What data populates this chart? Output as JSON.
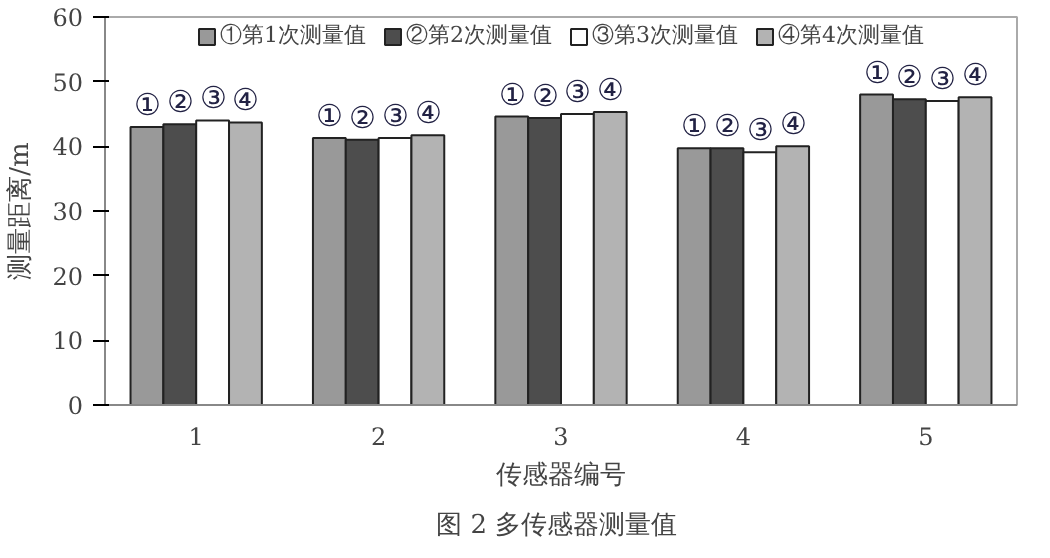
{
  "chart_data": {
    "type": "bar",
    "title": "图 2  多传感器测量值",
    "xlabel": "传感器编号",
    "ylabel": "测量距离/m",
    "categories": [
      "1",
      "2",
      "3",
      "4",
      "5"
    ],
    "series": [
      {
        "name": "①第1次测量值",
        "color": "#999999",
        "values": [
          43.0,
          41.3,
          44.6,
          39.7,
          48.0
        ],
        "value_labels": [
          "①",
          "①",
          "①",
          "①",
          "①"
        ]
      },
      {
        "name": "②第2次测量值",
        "color": "#4d4d4d",
        "values": [
          43.4,
          41.0,
          44.4,
          39.7,
          47.3
        ],
        "value_labels": [
          "②",
          "②",
          "②",
          "②",
          "②"
        ]
      },
      {
        "name": "③第3次测量值",
        "color": "#ffffff",
        "values": [
          44.0,
          41.3,
          45.0,
          39.1,
          47.0
        ],
        "value_labels": [
          "③",
          "③",
          "③",
          "③",
          "③"
        ]
      },
      {
        "name": "④第4次测量值",
        "color": "#b3b3b3",
        "values": [
          43.7,
          41.7,
          45.3,
          40.0,
          47.6
        ],
        "value_labels": [
          "④",
          "④",
          "④",
          "④",
          "④"
        ]
      }
    ],
    "ylim": [
      0,
      60
    ],
    "yticks": [
      0,
      10,
      20,
      30,
      40,
      50,
      60
    ],
    "grid": false,
    "legend": "top"
  }
}
